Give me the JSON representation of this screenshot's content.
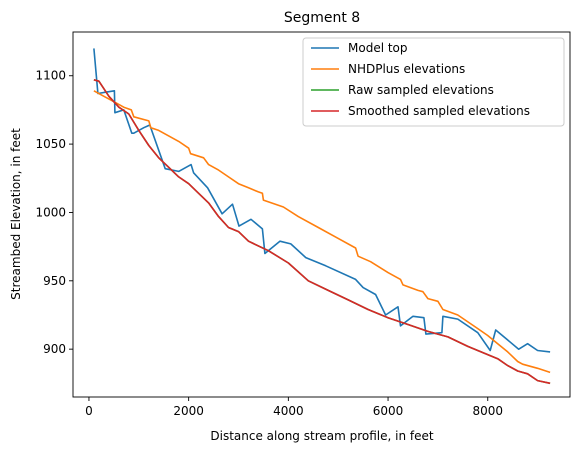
{
  "chart_data": {
    "type": "line",
    "title": "Segment 8",
    "xlabel": "Distance along stream profile, in feet",
    "ylabel": "Streambed Elevation, in feet",
    "xlim": [
      -320,
      9650
    ],
    "ylim": [
      865,
      1132
    ],
    "xticks": [
      0,
      2000,
      4000,
      6000,
      8000
    ],
    "yticks": [
      900,
      950,
      1000,
      1050,
      1100
    ],
    "legend_position": "top-right",
    "series": [
      {
        "name": "Model top",
        "color": "#1f77b4",
        "x": [
          100,
          180,
          350,
          510,
          520,
          700,
          860,
          900,
          1100,
          1220,
          1530,
          1800,
          2050,
          2100,
          2380,
          2670,
          2880,
          3010,
          3250,
          3480,
          3530,
          3830,
          4050,
          4350,
          4750,
          5350,
          5500,
          5750,
          5950,
          6200,
          6250,
          6500,
          6720,
          6760,
          7080,
          7100,
          7400,
          7800,
          8050,
          8160,
          8620,
          8800,
          9000,
          9250
        ],
        "y": [
          1120,
          1087,
          1088,
          1089,
          1073,
          1075,
          1058,
          1058,
          1062,
          1064,
          1032,
          1030,
          1035,
          1029,
          1018,
          999,
          1006,
          990,
          995,
          988,
          970,
          979,
          977,
          967,
          961,
          951,
          945,
          940,
          925,
          931,
          917,
          924,
          923,
          911,
          912,
          924,
          922,
          912,
          899,
          914,
          900,
          904,
          899,
          898
        ]
      },
      {
        "name": "NHDPlus elevations",
        "color": "#ff7f0e",
        "x": [
          100,
          300,
          500,
          700,
          850,
          900,
          1200,
          1240,
          1400,
          1600,
          1800,
          2000,
          2040,
          2300,
          2400,
          2600,
          2800,
          3000,
          3200,
          3400,
          3480,
          3500,
          3900,
          4200,
          4600,
          5000,
          5350,
          5400,
          5650,
          6000,
          6250,
          6300,
          6600,
          6700,
          6800,
          7000,
          7100,
          7400,
          7800,
          8000,
          8200,
          8400,
          8600,
          8700,
          9000,
          9250
        ],
        "y": [
          1089,
          1085,
          1081,
          1077,
          1075,
          1070,
          1067,
          1062,
          1060,
          1056,
          1052,
          1047,
          1043,
          1040,
          1035,
          1031,
          1026,
          1021,
          1018,
          1015,
          1014,
          1009,
          1004,
          997,
          989,
          981,
          974,
          968,
          964,
          956,
          951,
          947,
          943,
          942,
          937,
          935,
          929,
          925,
          915,
          910,
          904,
          898,
          891,
          889,
          886,
          883
        ]
      },
      {
        "name": "Raw sampled elevations",
        "color": "#2ca02c",
        "x": [
          100,
          200,
          400,
          600,
          800,
          1000,
          1200,
          1400,
          1600,
          1800,
          2000,
          2200,
          2400,
          2600,
          2800,
          3000,
          3200,
          3600,
          4000,
          4400,
          4800,
          5200,
          5600,
          6000,
          6400,
          6800,
          7200,
          7600,
          8000,
          8200,
          8400,
          8600,
          8800,
          9000,
          9250
        ],
        "y": [
          1097,
          1096,
          1085,
          1077,
          1072,
          1060,
          1049,
          1040,
          1033,
          1026,
          1021,
          1014,
          1007,
          997,
          989,
          986,
          979,
          972,
          963,
          950,
          943,
          936,
          929,
          923,
          918,
          913,
          909,
          902,
          896,
          893,
          888,
          884,
          882,
          877,
          875
        ]
      },
      {
        "name": "Smoothed sampled elevations",
        "color": "#d62728",
        "x": [
          100,
          200,
          400,
          600,
          800,
          1000,
          1200,
          1400,
          1600,
          1800,
          2000,
          2200,
          2400,
          2600,
          2800,
          3000,
          3200,
          3600,
          4000,
          4400,
          4800,
          5200,
          5600,
          6000,
          6400,
          6800,
          7200,
          7600,
          8000,
          8200,
          8400,
          8600,
          8800,
          9000,
          9250
        ],
        "y": [
          1097,
          1096,
          1085,
          1077,
          1072,
          1060,
          1049,
          1040,
          1033,
          1026,
          1021,
          1014,
          1007,
          997,
          989,
          986,
          979,
          972,
          963,
          950,
          943,
          936,
          929,
          923,
          918,
          913,
          909,
          902,
          896,
          893,
          888,
          884,
          882,
          877,
          875
        ]
      }
    ]
  }
}
